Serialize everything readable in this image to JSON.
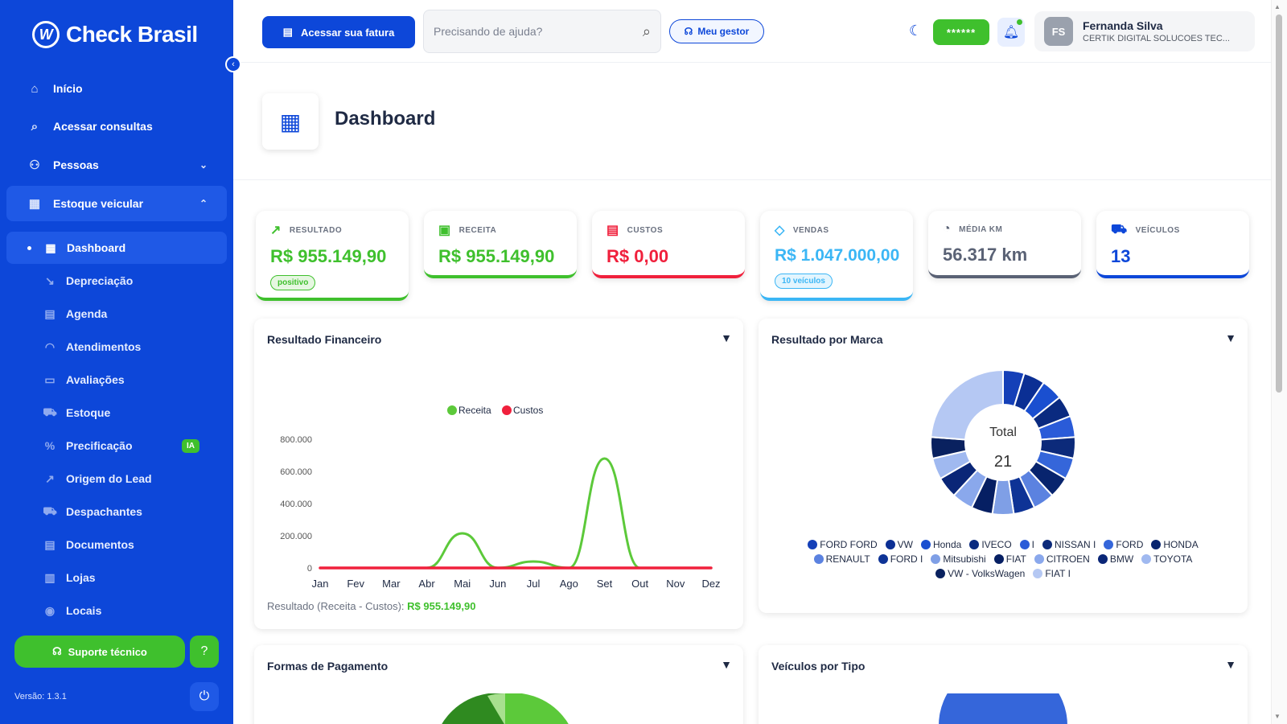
{
  "brand": {
    "name": "Check Brasil",
    "mark": "W"
  },
  "sidebar": {
    "items": [
      {
        "label": "Início",
        "icon": "home-icon",
        "glyph": "⌂"
      },
      {
        "label": "Acessar consultas",
        "icon": "search-icon",
        "glyph": "⌕"
      },
      {
        "label": "Pessoas",
        "icon": "people-icon",
        "glyph": "⚇",
        "chevron": "⌄"
      },
      {
        "label": "Estoque veicular",
        "icon": "building-icon",
        "glyph": "▦",
        "chevron": "⌃"
      }
    ],
    "subitems": [
      {
        "label": "Dashboard",
        "icon": "dashboard-icon",
        "glyph": "▦"
      },
      {
        "label": "Depreciação",
        "icon": "trend-down-icon",
        "glyph": "↘"
      },
      {
        "label": "Agenda",
        "icon": "agenda-icon",
        "glyph": "▤"
      },
      {
        "label": "Atendimentos",
        "icon": "headset-icon",
        "glyph": "◠"
      },
      {
        "label": "Avaliações",
        "icon": "evaluation-icon",
        "glyph": "▭"
      },
      {
        "label": "Estoque",
        "icon": "car-icon",
        "glyph": "⛟"
      },
      {
        "label": "Precificação",
        "icon": "percent-icon",
        "glyph": "%",
        "badge": "IA"
      },
      {
        "label": "Origem do Lead",
        "icon": "chart-line-icon",
        "glyph": "↗"
      },
      {
        "label": "Despachantes",
        "icon": "truck-icon",
        "glyph": "⛟"
      },
      {
        "label": "Documentos",
        "icon": "document-icon",
        "glyph": "▤"
      },
      {
        "label": "Lojas",
        "icon": "store-icon",
        "glyph": "▥"
      },
      {
        "label": "Locais",
        "icon": "location-icon",
        "glyph": "◉"
      }
    ],
    "support_label": "Suporte técnico",
    "version": "Versão: 1.3.1"
  },
  "topbar": {
    "invoice_label": "Acessar sua fatura",
    "search_placeholder": "Precisando de ajuda?",
    "manager_label": "Meu gestor",
    "masked_value": "******",
    "user": {
      "initials": "FS",
      "name": "Fernanda Silva",
      "company": "CERTIK DIGITAL SOLUCOES TEC..."
    }
  },
  "page": {
    "title": "Dashboard"
  },
  "kpis": [
    {
      "label": "RESULTADO",
      "value": "R$ 955.149,90",
      "badge": "positivo",
      "color": "#3fc02d",
      "icon": "trend-up-icon",
      "glyph": "↗"
    },
    {
      "label": "RECEITA",
      "value": "R$ 955.149,90",
      "color": "#3fc02d",
      "icon": "money-icon",
      "glyph": "▣"
    },
    {
      "label": "CUSTOS",
      "value": "R$ 0,00",
      "color": "#f0203c",
      "icon": "receipt-icon",
      "glyph": "▤"
    },
    {
      "label": "VENDAS",
      "value": "R$ 1.047.000,00",
      "badge": "10 veículos",
      "color": "#3bb6f5",
      "icon": "tag-icon",
      "glyph": "◇"
    },
    {
      "label": "MÉDIA KM",
      "value": "56.317 km",
      "color": "#5a6275",
      "icon": "speedometer-icon",
      "glyph": "◔"
    },
    {
      "label": "VEÍCULOS",
      "value": "13",
      "color": "#0d47d9",
      "icon": "car-icon",
      "glyph": "⛟"
    }
  ],
  "panels": {
    "financial": {
      "title": "Resultado Financeiro",
      "result_label": "Resultado (Receita - Custos):",
      "result_value": "R$ 955.149,90"
    },
    "brand": {
      "title": "Resultado por Marca",
      "total_label": "Total",
      "total_value": "21"
    },
    "payment": {
      "title": "Formas de Pagamento"
    },
    "types": {
      "title": "Veículos por Tipo"
    }
  },
  "chart_data": [
    {
      "type": "line",
      "categories": [
        "Jan",
        "Fev",
        "Mar",
        "Abr",
        "Mai",
        "Jun",
        "Jul",
        "Ago",
        "Set",
        "Out",
        "Nov",
        "Dez"
      ],
      "ylim": [
        0,
        800000
      ],
      "yticks": [
        "800.000",
        "600.000",
        "400.000",
        "200.000",
        "0"
      ],
      "legend_position": "top",
      "series": [
        {
          "name": "Receita",
          "color": "#5cc93a",
          "values": [
            0,
            0,
            0,
            0,
            215000,
            0,
            40000,
            0,
            680000,
            0,
            0,
            0
          ]
        },
        {
          "name": "Custos",
          "color": "#f0203c",
          "values": [
            0,
            0,
            0,
            0,
            0,
            0,
            0,
            0,
            0,
            0,
            0,
            0
          ]
        }
      ]
    },
    {
      "type": "pie",
      "title": "Resultado por Marca",
      "labels": [
        "FORD FORD",
        "VW",
        "Honda",
        "IVECO",
        "I",
        "NISSAN I",
        "FORD",
        "HONDA",
        "RENAULT",
        "FORD I",
        "Mitsubishi",
        "FIAT",
        "CITROEN",
        "BMW",
        "TOYOTA",
        "VW - VolksWagen",
        "FIAT I"
      ],
      "colors": [
        "#1540b8",
        "#0b2f94",
        "#1a4fd0",
        "#0a2a80",
        "#2a5bd8",
        "#0c2a7a",
        "#3566da",
        "#08246e",
        "#5b82e0",
        "#0e3396",
        "#7f9fe6",
        "#061f63",
        "#8aa8ec",
        "#0a2677",
        "#a0b9f0",
        "#09215f",
        "#b5c8f3"
      ],
      "values": [
        1,
        1,
        1,
        1,
        1,
        1,
        1,
        1,
        1,
        1,
        1,
        1,
        1,
        1,
        1,
        1,
        5
      ],
      "total": 21
    }
  ]
}
